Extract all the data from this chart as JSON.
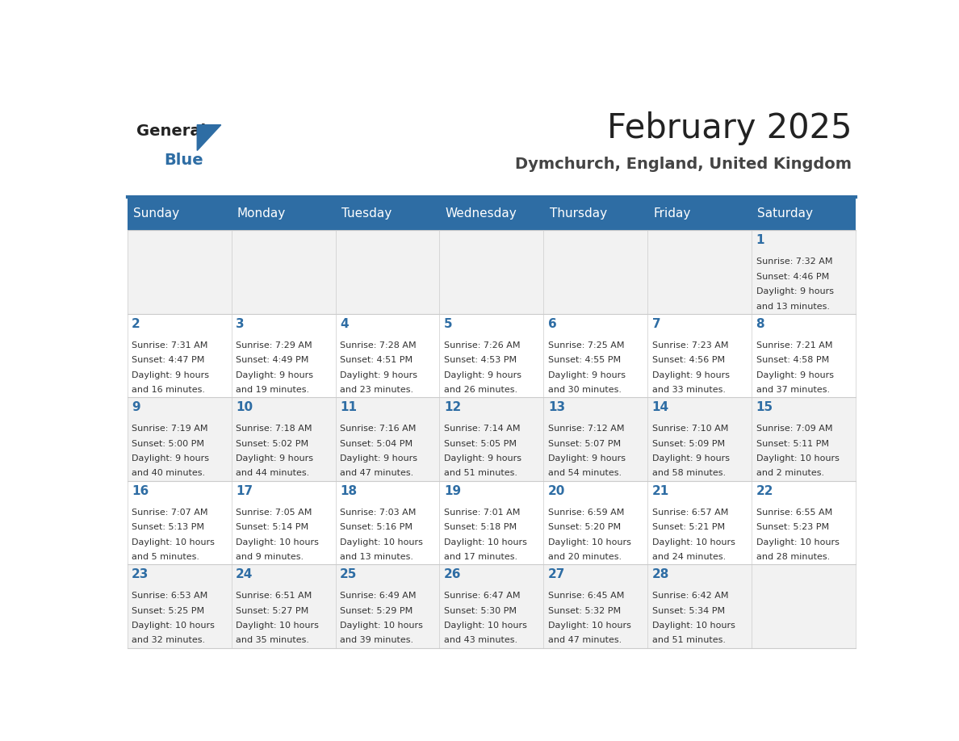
{
  "title": "February 2025",
  "subtitle": "Dymchurch, England, United Kingdom",
  "header_bg": "#2E6DA4",
  "header_text": "#FFFFFF",
  "day_names": [
    "Sunday",
    "Monday",
    "Tuesday",
    "Wednesday",
    "Thursday",
    "Friday",
    "Saturday"
  ],
  "row_bg_odd": "#F2F2F2",
  "row_bg_even": "#FFFFFF",
  "cell_border": "#CCCCCC",
  "date_color": "#2E6DA4",
  "info_color": "#333333",
  "title_color": "#222222",
  "subtitle_color": "#444444",
  "logo_general_color": "#222222",
  "logo_blue_color": "#2E6DA4",
  "weeks": [
    [
      {
        "day": null,
        "info": ""
      },
      {
        "day": null,
        "info": ""
      },
      {
        "day": null,
        "info": ""
      },
      {
        "day": null,
        "info": ""
      },
      {
        "day": null,
        "info": ""
      },
      {
        "day": null,
        "info": ""
      },
      {
        "day": 1,
        "info": "Sunrise: 7:32 AM\nSunset: 4:46 PM\nDaylight: 9 hours\nand 13 minutes."
      }
    ],
    [
      {
        "day": 2,
        "info": "Sunrise: 7:31 AM\nSunset: 4:47 PM\nDaylight: 9 hours\nand 16 minutes."
      },
      {
        "day": 3,
        "info": "Sunrise: 7:29 AM\nSunset: 4:49 PM\nDaylight: 9 hours\nand 19 minutes."
      },
      {
        "day": 4,
        "info": "Sunrise: 7:28 AM\nSunset: 4:51 PM\nDaylight: 9 hours\nand 23 minutes."
      },
      {
        "day": 5,
        "info": "Sunrise: 7:26 AM\nSunset: 4:53 PM\nDaylight: 9 hours\nand 26 minutes."
      },
      {
        "day": 6,
        "info": "Sunrise: 7:25 AM\nSunset: 4:55 PM\nDaylight: 9 hours\nand 30 minutes."
      },
      {
        "day": 7,
        "info": "Sunrise: 7:23 AM\nSunset: 4:56 PM\nDaylight: 9 hours\nand 33 minutes."
      },
      {
        "day": 8,
        "info": "Sunrise: 7:21 AM\nSunset: 4:58 PM\nDaylight: 9 hours\nand 37 minutes."
      }
    ],
    [
      {
        "day": 9,
        "info": "Sunrise: 7:19 AM\nSunset: 5:00 PM\nDaylight: 9 hours\nand 40 minutes."
      },
      {
        "day": 10,
        "info": "Sunrise: 7:18 AM\nSunset: 5:02 PM\nDaylight: 9 hours\nand 44 minutes."
      },
      {
        "day": 11,
        "info": "Sunrise: 7:16 AM\nSunset: 5:04 PM\nDaylight: 9 hours\nand 47 minutes."
      },
      {
        "day": 12,
        "info": "Sunrise: 7:14 AM\nSunset: 5:05 PM\nDaylight: 9 hours\nand 51 minutes."
      },
      {
        "day": 13,
        "info": "Sunrise: 7:12 AM\nSunset: 5:07 PM\nDaylight: 9 hours\nand 54 minutes."
      },
      {
        "day": 14,
        "info": "Sunrise: 7:10 AM\nSunset: 5:09 PM\nDaylight: 9 hours\nand 58 minutes."
      },
      {
        "day": 15,
        "info": "Sunrise: 7:09 AM\nSunset: 5:11 PM\nDaylight: 10 hours\nand 2 minutes."
      }
    ],
    [
      {
        "day": 16,
        "info": "Sunrise: 7:07 AM\nSunset: 5:13 PM\nDaylight: 10 hours\nand 5 minutes."
      },
      {
        "day": 17,
        "info": "Sunrise: 7:05 AM\nSunset: 5:14 PM\nDaylight: 10 hours\nand 9 minutes."
      },
      {
        "day": 18,
        "info": "Sunrise: 7:03 AM\nSunset: 5:16 PM\nDaylight: 10 hours\nand 13 minutes."
      },
      {
        "day": 19,
        "info": "Sunrise: 7:01 AM\nSunset: 5:18 PM\nDaylight: 10 hours\nand 17 minutes."
      },
      {
        "day": 20,
        "info": "Sunrise: 6:59 AM\nSunset: 5:20 PM\nDaylight: 10 hours\nand 20 minutes."
      },
      {
        "day": 21,
        "info": "Sunrise: 6:57 AM\nSunset: 5:21 PM\nDaylight: 10 hours\nand 24 minutes."
      },
      {
        "day": 22,
        "info": "Sunrise: 6:55 AM\nSunset: 5:23 PM\nDaylight: 10 hours\nand 28 minutes."
      }
    ],
    [
      {
        "day": 23,
        "info": "Sunrise: 6:53 AM\nSunset: 5:25 PM\nDaylight: 10 hours\nand 32 minutes."
      },
      {
        "day": 24,
        "info": "Sunrise: 6:51 AM\nSunset: 5:27 PM\nDaylight: 10 hours\nand 35 minutes."
      },
      {
        "day": 25,
        "info": "Sunrise: 6:49 AM\nSunset: 5:29 PM\nDaylight: 10 hours\nand 39 minutes."
      },
      {
        "day": 26,
        "info": "Sunrise: 6:47 AM\nSunset: 5:30 PM\nDaylight: 10 hours\nand 43 minutes."
      },
      {
        "day": 27,
        "info": "Sunrise: 6:45 AM\nSunset: 5:32 PM\nDaylight: 10 hours\nand 47 minutes."
      },
      {
        "day": 28,
        "info": "Sunrise: 6:42 AM\nSunset: 5:34 PM\nDaylight: 10 hours\nand 51 minutes."
      },
      {
        "day": null,
        "info": ""
      }
    ]
  ]
}
